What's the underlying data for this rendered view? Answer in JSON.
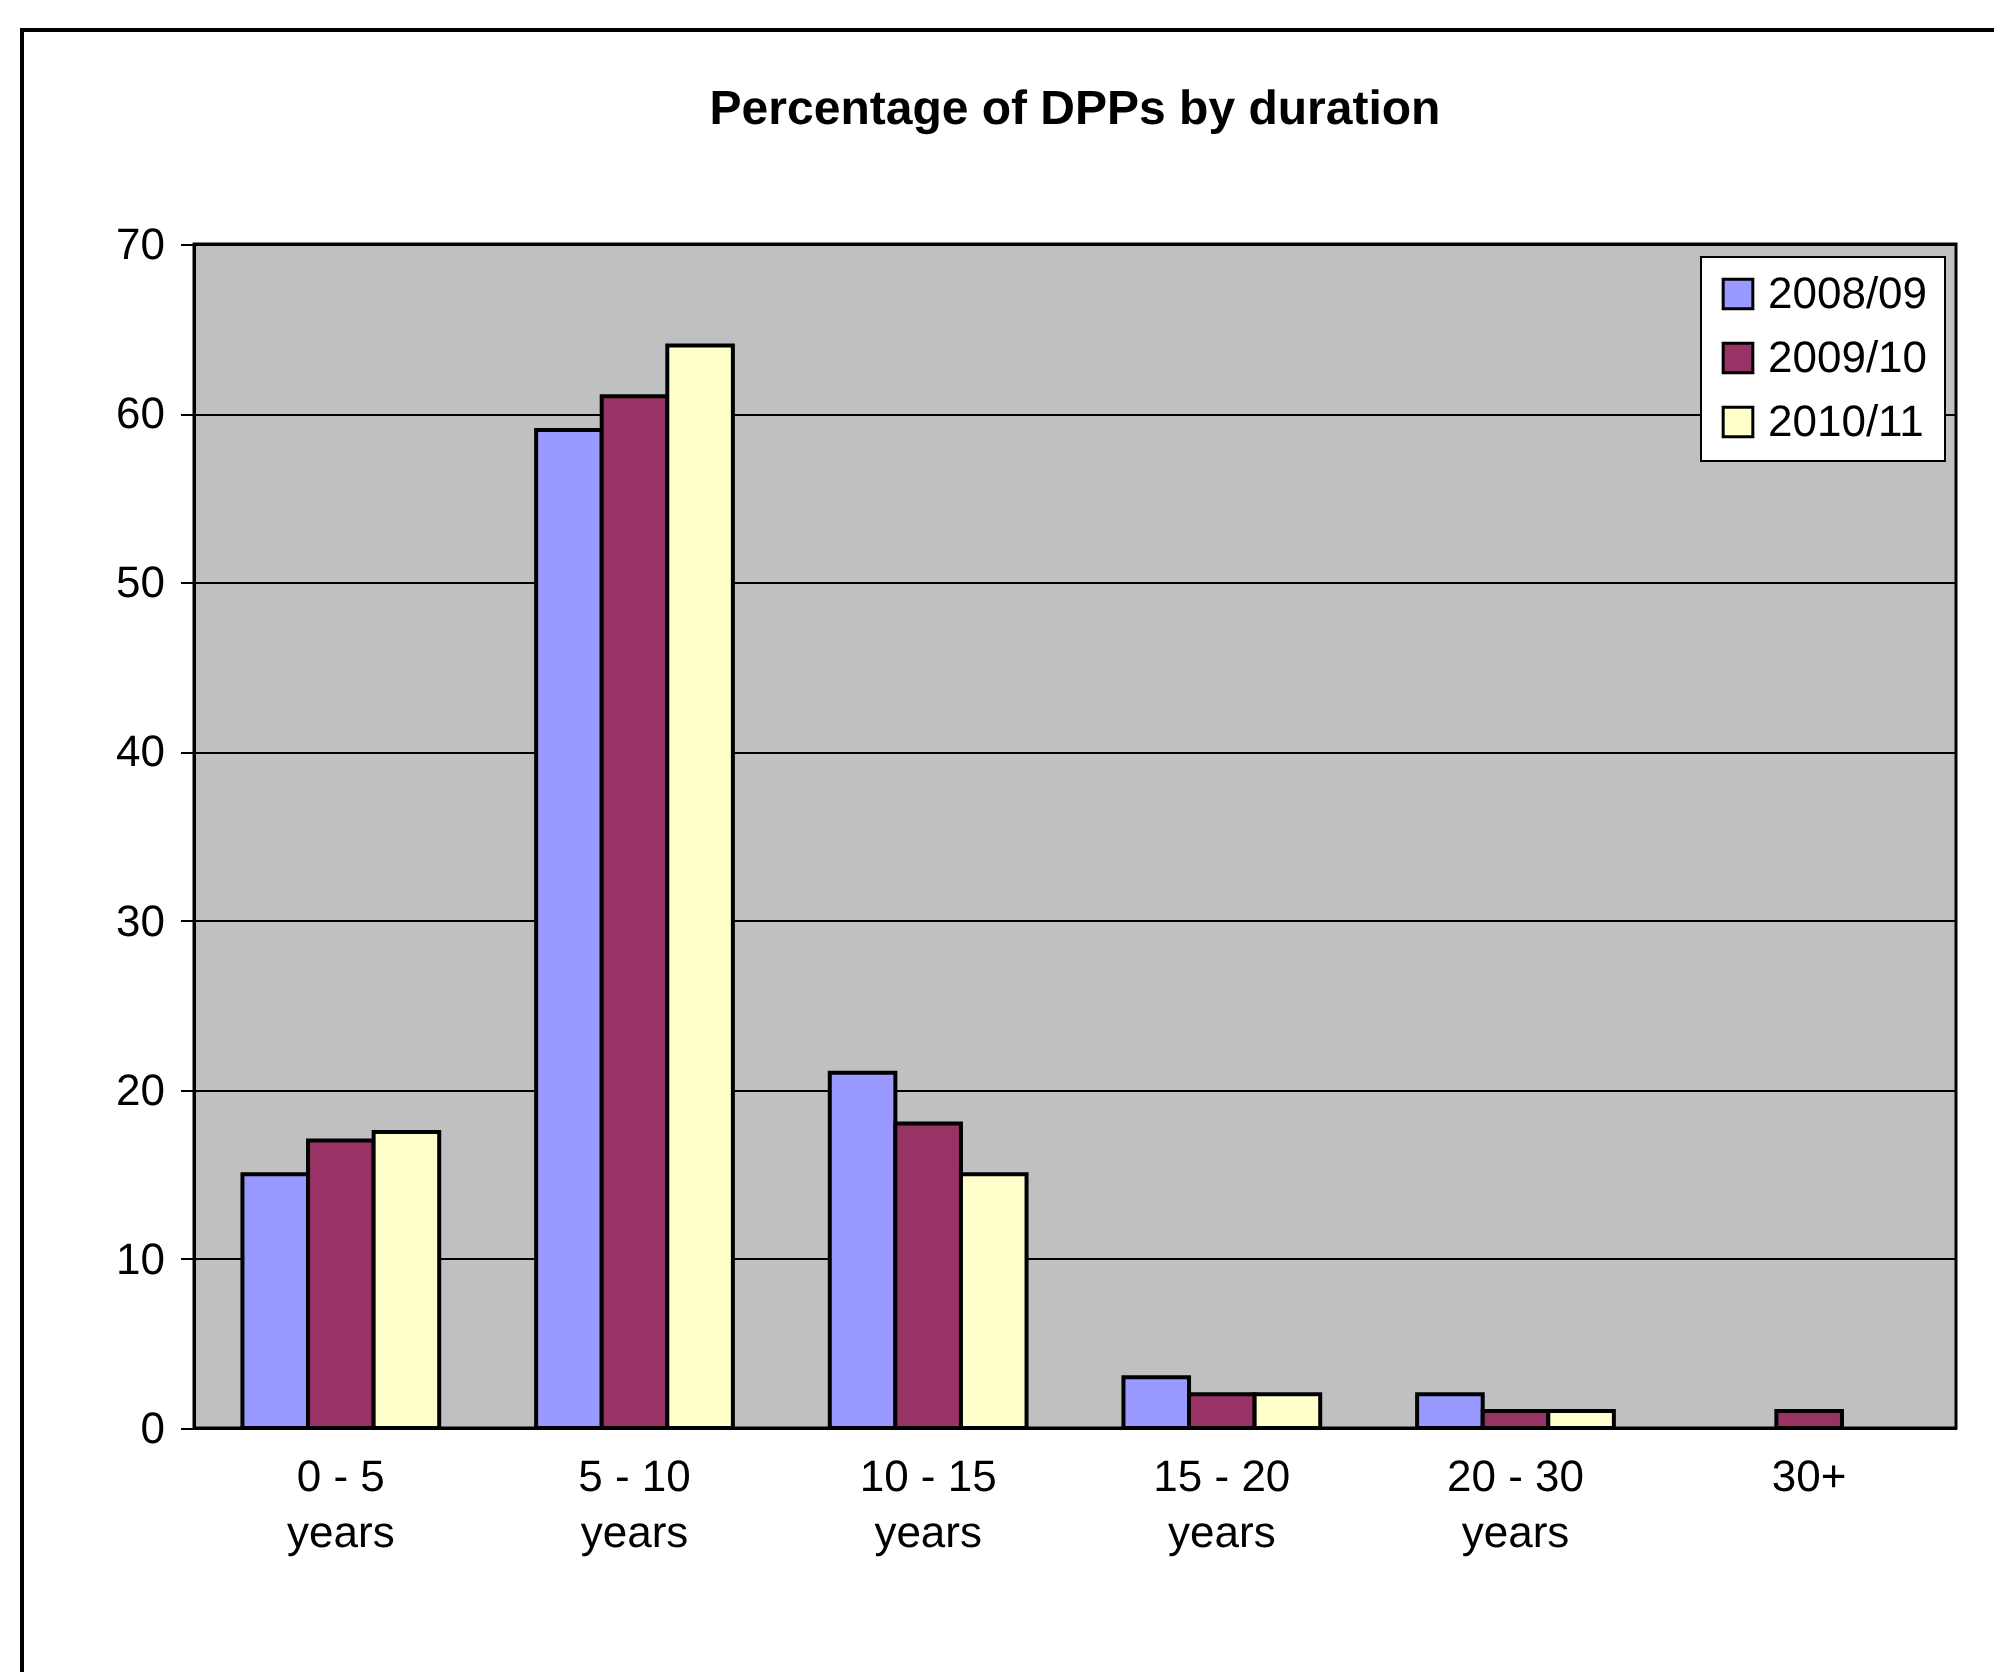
{
  "chart_data": {
    "type": "bar",
    "title": "Percentage of DPPs by duration",
    "categories": [
      "0 - 5 years",
      "5 - 10 years",
      "10 - 15 years",
      "15 - 20 years",
      "20 - 30 years",
      "30+"
    ],
    "series": [
      {
        "name": "2008/09",
        "color": "#9999ff",
        "values": [
          15,
          59,
          21,
          3,
          2,
          null
        ]
      },
      {
        "name": "2009/10",
        "color": "#993366",
        "values": [
          17,
          61,
          18,
          2,
          1,
          1
        ]
      },
      {
        "name": "2010/11",
        "color": "#ffffcc",
        "values": [
          17.5,
          64,
          15,
          2,
          1,
          null
        ]
      }
    ],
    "ylim": [
      0,
      70
    ],
    "yticks": [
      0,
      10,
      20,
      30,
      40,
      50,
      60,
      70
    ],
    "grid": "y",
    "legend": "top right"
  }
}
